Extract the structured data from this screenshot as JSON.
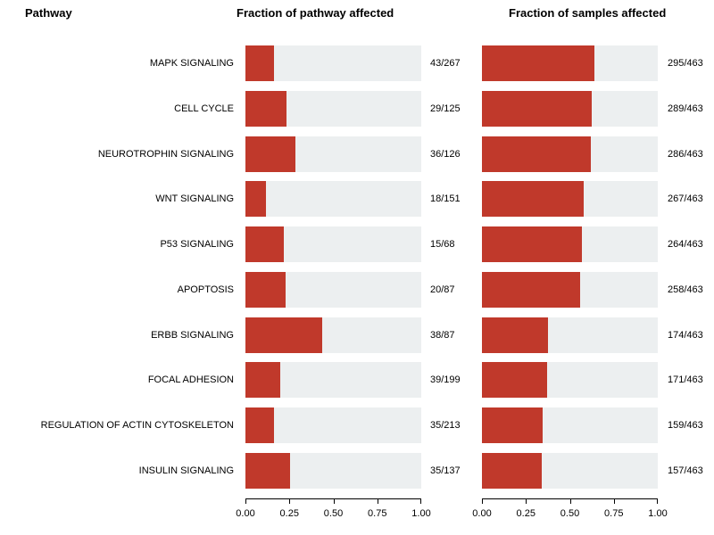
{
  "headers": {
    "pathway": "Pathway",
    "pathway_affected": "Fraction of pathway affected",
    "samples_affected": "Fraction of samples affected"
  },
  "colors": {
    "bar": "#C0392B",
    "track": "#ECEFF0",
    "axis": "#000000",
    "background": "#FFFFFF"
  },
  "chart_data": {
    "type": "bar",
    "orientation": "horizontal",
    "categories": [
      "MAPK SIGNALING",
      "CELL CYCLE",
      "NEUROTROPHIN SIGNALING",
      "WNT SIGNALING",
      "P53 SIGNALING",
      "APOPTOSIS",
      "ERBB SIGNALING",
      "FOCAL ADHESION",
      "REGULATION OF ACTIN CYTOSKELETON",
      "INSULIN SIGNALING"
    ],
    "series": [
      {
        "name": "Fraction of pathway affected",
        "labels": [
          "43/267",
          "29/125",
          "36/126",
          "18/151",
          "15/68",
          "20/87",
          "38/87",
          "39/199",
          "35/213",
          "35/137"
        ],
        "values": [
          0.161,
          0.232,
          0.2857,
          0.1192,
          0.2206,
          0.2299,
          0.4368,
          0.196,
          0.1643,
          0.2555
        ]
      },
      {
        "name": "Fraction of samples affected",
        "labels": [
          "295/463",
          "289/463",
          "286/463",
          "267/463",
          "264/463",
          "258/463",
          "174/463",
          "171/463",
          "159/463",
          "157/463"
        ],
        "values": [
          0.6371,
          0.6242,
          0.6177,
          0.5767,
          0.5702,
          0.5572,
          0.3758,
          0.3693,
          0.3434,
          0.3391
        ]
      }
    ],
    "xlim": [
      0,
      1
    ],
    "xticks": [
      0,
      0.25,
      0.5,
      0.75,
      1
    ],
    "xtick_labels": [
      "0.00",
      "0.25",
      "0.50",
      "0.75",
      "1.00"
    ],
    "grid": false,
    "legend": "none"
  }
}
